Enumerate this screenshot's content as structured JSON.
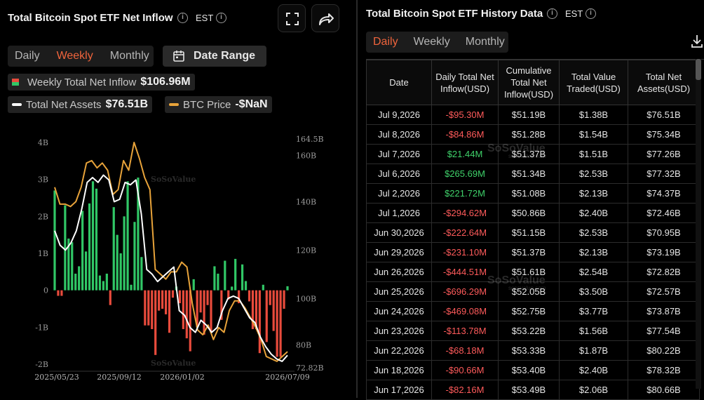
{
  "left_panel": {
    "title": "Total Bitcoin Spot ETF Net Inflow",
    "timezone": "EST",
    "period_tabs": [
      {
        "label": "Daily",
        "active": false
      },
      {
        "label": "Weekly",
        "active": true
      },
      {
        "label": "Monthly",
        "active": false
      }
    ],
    "date_range_label": "Date Range",
    "legend": {
      "inflow_label": "Weekly Total Net Inflow",
      "inflow_value": "$106.96M",
      "assets_label": "Total Net Assets",
      "assets_value": "$76.51B",
      "btc_label": "BTC Price",
      "btc_value": "-$NaN"
    },
    "watermark": "SoSoValue",
    "watermark_url": "sosovalue.com"
  },
  "chart_data": {
    "type": "bar",
    "title": "",
    "x_tick_labels": [
      "2025/05/23",
      "2025/09/12",
      "2026/01/02",
      "2026/07/09"
    ],
    "left_axis": {
      "ticks": [
        "4B",
        "3B",
        "2B",
        "1B",
        "0",
        "-1B",
        "-2B"
      ],
      "range": [
        -2,
        4
      ]
    },
    "right_axis": {
      "ticks": [
        "164.5B",
        "160B",
        "140B",
        "120B",
        "100B",
        "80B",
        "72.82B"
      ],
      "range": [
        72.82,
        164.5
      ]
    },
    "colors": {
      "positive": "#31c766",
      "negative": "#e84b3c",
      "assets": "#ffffff",
      "btc_price": "#e8a33a"
    },
    "series": [
      {
        "name": "Weekly Total Net Inflow",
        "unit": "B USD",
        "values": [
          2.7,
          -0.15,
          -0.15,
          2.3,
          1.4,
          1.3,
          0.45,
          0.65,
          2.15,
          1.05,
          2.35,
          2.95,
          2.75,
          0.4,
          0.25,
          0.45,
          -0.4,
          2.25,
          1.5,
          1.0,
          2.0,
          2.95,
          0.15,
          1.85,
          3.05,
          0.9,
          -0.95,
          -0.95,
          -1.05,
          -1.75,
          -0.55,
          -0.5,
          -0.65,
          -1.15,
          -0.2,
          0.1,
          -0.35,
          -1.05,
          -1.3,
          -1.65,
          0.3,
          -1.0,
          -0.6,
          -1.2,
          -0.4,
          -1.15,
          0.65,
          0.45,
          -0.8,
          0.8,
          -0.25,
          0.1,
          0.85,
          -0.35,
          0.7,
          0.25,
          -0.3,
          -1.05,
          -1.05,
          -1.7,
          0.15,
          -1.4,
          -0.4,
          -1.1,
          -1.8,
          -1.8,
          -0.5,
          0.11
        ]
      },
      {
        "name": "Total Net Assets",
        "unit": "B USD",
        "values": [
          128,
          122,
          120,
          123,
          128,
          137,
          148,
          150,
          148,
          151,
          149,
          140,
          141,
          148,
          147,
          149,
          135,
          112,
          110,
          107,
          109,
          111,
          113,
          95,
          93,
          88,
          86,
          91,
          89,
          86,
          88,
          95,
          100,
          101,
          100,
          96,
          92,
          90,
          84,
          80,
          77,
          75,
          74,
          76.51
        ]
      },
      {
        "name": "BTC Price",
        "unit": "B",
        "values": [
          146,
          139,
          139,
          138,
          140,
          146,
          156,
          157,
          154,
          156,
          153,
          143,
          145,
          157,
          153,
          164.5,
          158,
          150,
          145,
          112,
          110,
          108,
          111,
          111,
          115,
          113,
          98,
          87,
          85,
          89,
          83,
          88,
          86,
          95,
          99,
          99,
          96,
          92,
          88,
          83,
          76,
          75,
          74,
          76,
          78
        ]
      }
    ]
  },
  "right_panel": {
    "title": "Total Bitcoin Spot ETF History Data",
    "timezone": "EST",
    "period_tabs": [
      {
        "label": "Daily",
        "active": true
      },
      {
        "label": "Weekly",
        "active": false
      },
      {
        "label": "Monthly",
        "active": false
      }
    ],
    "table": {
      "headers": [
        "Date",
        "Daily Total Net Inflow(USD)",
        "Cumulative Total Net Inflow(USD)",
        "Total Value Traded(USD)",
        "Total Net Assets(USD)"
      ],
      "rows": [
        [
          "Jul 9,2026",
          "-$95.30M",
          "$51.19B",
          "$1.38B",
          "$76.51B"
        ],
        [
          "Jul 8,2026",
          "-$84.86M",
          "$51.28B",
          "$1.54B",
          "$75.34B"
        ],
        [
          "Jul 7,2026",
          "$21.44M",
          "$51.37B",
          "$1.51B",
          "$77.26B"
        ],
        [
          "Jul 6,2026",
          "$265.69M",
          "$51.34B",
          "$2.53B",
          "$77.32B"
        ],
        [
          "Jul 2,2026",
          "$221.72M",
          "$51.08B",
          "$2.13B",
          "$74.37B"
        ],
        [
          "Jul 1,2026",
          "-$294.62M",
          "$50.86B",
          "$2.40B",
          "$72.46B"
        ],
        [
          "Jun 30,2026",
          "-$222.64M",
          "$51.15B",
          "$2.53B",
          "$70.95B"
        ],
        [
          "Jun 29,2026",
          "-$231.10M",
          "$51.37B",
          "$2.13B",
          "$73.19B"
        ],
        [
          "Jun 26,2026",
          "-$444.51M",
          "$51.61B",
          "$2.54B",
          "$72.82B"
        ],
        [
          "Jun 25,2026",
          "-$696.29M",
          "$52.05B",
          "$3.50B",
          "$72.57B"
        ],
        [
          "Jun 24,2026",
          "-$469.08M",
          "$52.75B",
          "$3.77B",
          "$73.87B"
        ],
        [
          "Jun 23,2026",
          "-$113.78M",
          "$53.22B",
          "$1.56B",
          "$77.54B"
        ],
        [
          "Jun 22,2026",
          "-$68.18M",
          "$53.33B",
          "$1.87B",
          "$80.22B"
        ],
        [
          "Jun 18,2026",
          "-$90.66M",
          "$53.40B",
          "$2.40B",
          "$78.32B"
        ],
        [
          "Jun 17,2026",
          "-$82.16M",
          "$53.49B",
          "$2.06B",
          "$80.66B"
        ]
      ]
    }
  },
  "icons": [
    "info-icon",
    "fullscreen-icon",
    "share-icon",
    "calendar-icon",
    "download-icon"
  ]
}
